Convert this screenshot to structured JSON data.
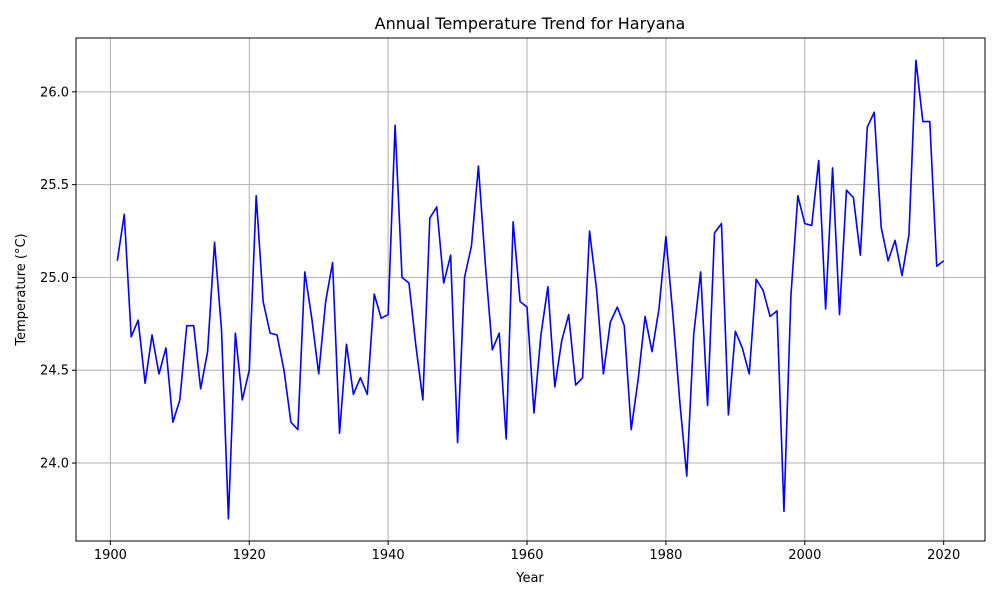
{
  "chart_data": {
    "type": "line",
    "title": "Annual Temperature Trend for Haryana",
    "xlabel": "Year",
    "ylabel": "Temperature (°C)",
    "xlim": [
      1895.05,
      2025.95
    ],
    "ylim": [
      23.58,
      26.29
    ],
    "grid": true,
    "line_color": "#0000ff",
    "xticks": [
      1900,
      1920,
      1940,
      1960,
      1980,
      2000,
      2020
    ],
    "yticks": [
      24.0,
      24.5,
      25.0,
      25.5,
      26.0
    ],
    "ytick_labels": [
      "24.0",
      "24.5",
      "25.0",
      "25.5",
      "26.0"
    ],
    "x": [
      1901,
      1902,
      1903,
      1904,
      1905,
      1906,
      1907,
      1908,
      1909,
      1910,
      1911,
      1912,
      1913,
      1914,
      1915,
      1916,
      1917,
      1918,
      1919,
      1920,
      1921,
      1922,
      1923,
      1924,
      1925,
      1926,
      1927,
      1928,
      1929,
      1930,
      1931,
      1932,
      1933,
      1934,
      1935,
      1936,
      1937,
      1938,
      1939,
      1940,
      1941,
      1942,
      1943,
      1944,
      1945,
      1946,
      1947,
      1948,
      1949,
      1950,
      1951,
      1952,
      1953,
      1954,
      1955,
      1956,
      1957,
      1958,
      1959,
      1960,
      1961,
      1962,
      1963,
      1964,
      1965,
      1966,
      1967,
      1968,
      1969,
      1970,
      1971,
      1972,
      1973,
      1974,
      1975,
      1976,
      1977,
      1978,
      1979,
      1980,
      1981,
      1982,
      1983,
      1984,
      1985,
      1986,
      1987,
      1988,
      1989,
      1990,
      1991,
      1992,
      1993,
      1994,
      1995,
      1996,
      1997,
      1998,
      1999,
      2000,
      2001,
      2002,
      2003,
      2004,
      2005,
      2006,
      2007,
      2008,
      2009,
      2010,
      2011,
      2012,
      2013,
      2014,
      2015,
      2016,
      2017,
      2018,
      2019,
      2020
    ],
    "y": [
      25.09,
      25.34,
      24.68,
      24.77,
      24.43,
      24.69,
      24.48,
      24.62,
      24.22,
      24.34,
      24.74,
      24.74,
      24.4,
      24.6,
      25.19,
      24.72,
      23.7,
      24.7,
      24.34,
      24.5,
      25.44,
      24.87,
      24.7,
      24.69,
      24.5,
      24.22,
      24.18,
      25.03,
      24.78,
      24.48,
      24.87,
      25.08,
      24.16,
      24.64,
      24.37,
      24.46,
      24.37,
      24.91,
      24.78,
      24.8,
      25.82,
      25.0,
      24.97,
      24.63,
      24.34,
      25.32,
      25.38,
      24.97,
      25.12,
      24.11,
      25.0,
      25.17,
      25.6,
      25.07,
      24.61,
      24.7,
      24.13,
      25.3,
      24.87,
      24.84,
      24.27,
      24.69,
      24.95,
      24.41,
      24.66,
      24.8,
      24.42,
      24.46,
      25.25,
      24.94,
      24.48,
      24.76,
      24.84,
      24.74,
      24.18,
      24.45,
      24.79,
      24.6,
      24.83,
      25.22,
      24.8,
      24.33,
      23.93,
      24.69,
      25.03,
      24.31,
      25.24,
      25.29,
      24.26,
      24.71,
      24.62,
      24.48,
      24.99,
      24.93,
      24.79,
      24.82,
      23.74,
      24.9,
      25.44,
      25.29,
      25.28,
      25.63,
      24.83,
      25.59,
      24.8,
      25.47,
      25.43,
      25.12,
      25.81,
      25.89,
      25.27,
      25.09,
      25.2,
      25.01,
      25.23,
      26.17,
      25.84,
      25.84,
      25.06,
      25.09
    ]
  }
}
